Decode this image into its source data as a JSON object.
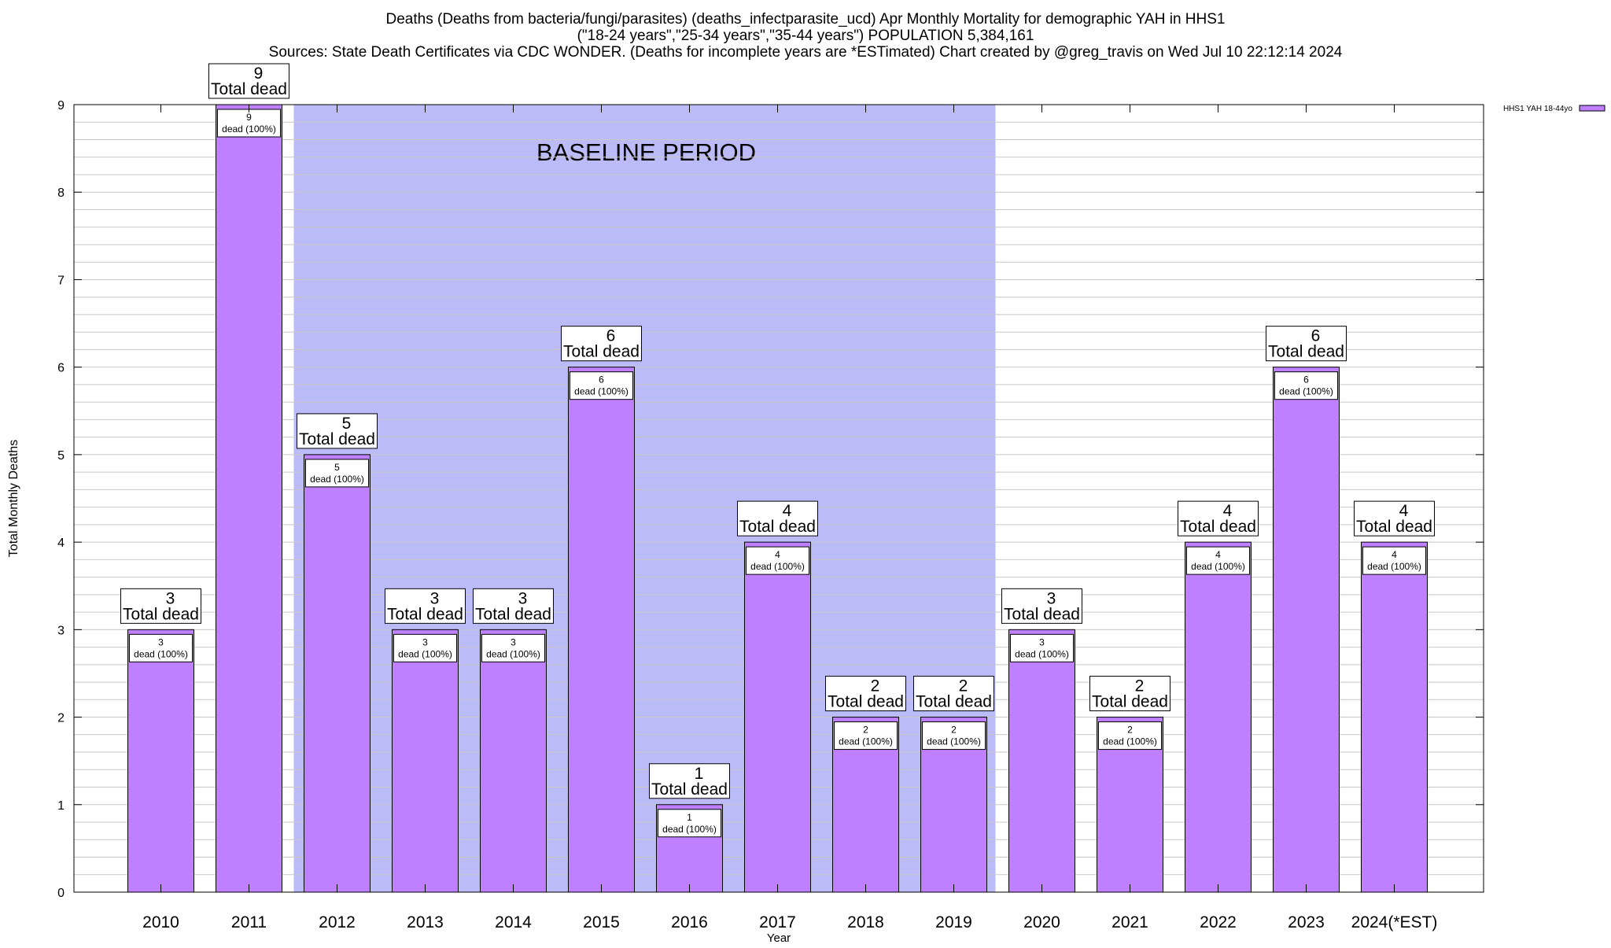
{
  "chart_data": {
    "type": "bar",
    "title_lines": [
      "Deaths (Deaths from bacteria/fungi/parasites) (deaths_infectparasite_ucd) Apr Monthly Mortality for demographic YAH in HHS1",
      "(\"18-24 years\",\"25-34 years\",\"35-44 years\") POPULATION 5,384,161",
      "Sources: State Death Certificates via CDC WONDER. (Deaths for incomplete years are *ESTimated)                Chart created by @greg_travis on Wed Jul 10 22:12:14 2024"
    ],
    "xlabel": "Year",
    "ylabel": "Total Monthly Deaths",
    "ylim": [
      0,
      9
    ],
    "y_ticks": [
      0,
      1,
      2,
      3,
      4,
      5,
      6,
      7,
      8,
      9
    ],
    "y_minor_step": 0.2,
    "grid": true,
    "legend": {
      "position": "top-right",
      "entries": [
        {
          "name": "HHS1 YAH 18-44yo",
          "color": "#bf80ff"
        }
      ]
    },
    "bar_color": "#bf80ff",
    "baseline_band": {
      "label": "BASELINE PERIOD",
      "from_category": "2012",
      "to_category": "2019",
      "color": "#bbbbf8"
    },
    "total_label_suffix": "Total dead",
    "inner_label_suffix": "dead (100%)",
    "categories": [
      "2010",
      "2011",
      "2012",
      "2013",
      "2014",
      "2015",
      "2016",
      "2017",
      "2018",
      "2019",
      "2020",
      "2021",
      "2022",
      "2023",
      "2024(*EST)"
    ],
    "values": [
      3,
      9,
      5,
      3,
      3,
      6,
      1,
      4,
      2,
      2,
      3,
      2,
      4,
      6,
      4
    ]
  }
}
